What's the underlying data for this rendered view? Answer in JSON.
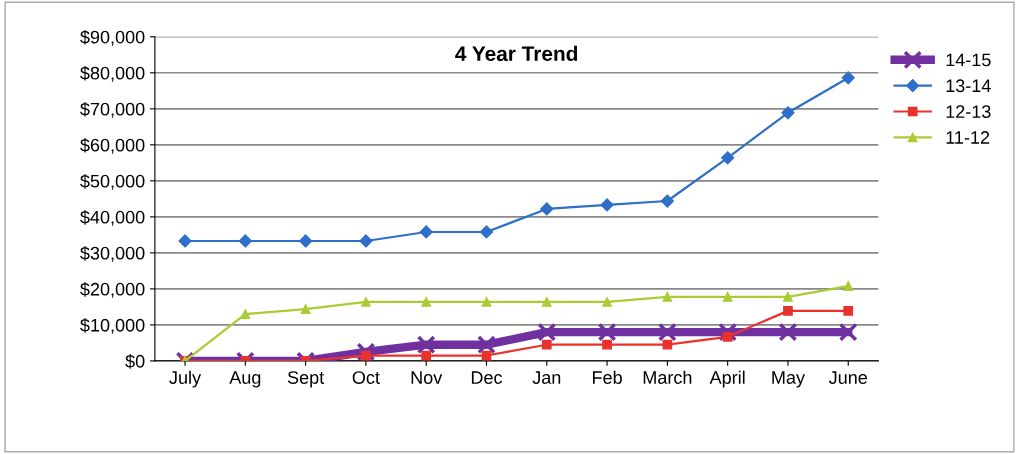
{
  "chart_data": {
    "type": "line",
    "title": "4 Year Trend",
    "categories": [
      "July",
      "Aug",
      "Sept",
      "Oct",
      "Nov",
      "Dec",
      "Jan",
      "Feb",
      "March",
      "April",
      "May",
      "June"
    ],
    "series": [
      {
        "name": "14-15",
        "color": "#7030a0",
        "marker": "cross",
        "values": [
          0,
          0,
          0,
          2500,
          4500,
          4500,
          8000,
          8000,
          8000,
          8000,
          8000,
          8000
        ]
      },
      {
        "name": "13-14",
        "color": "#2e6fc9",
        "marker": "diamond",
        "values": [
          33300,
          33300,
          33300,
          33300,
          35800,
          35800,
          42200,
          43300,
          44400,
          56400,
          68900,
          78600
        ]
      },
      {
        "name": "12-13",
        "color": "#e8322d",
        "marker": "square",
        "values": [
          0,
          0,
          0,
          1500,
          1500,
          1500,
          4500,
          4500,
          4500,
          6700,
          13900,
          13900
        ]
      },
      {
        "name": "11-12",
        "color": "#a9cc34",
        "marker": "triangle",
        "values": [
          0,
          13000,
          14400,
          16400,
          16400,
          16400,
          16400,
          16400,
          17800,
          17800,
          17800,
          20800
        ]
      }
    ],
    "ylim": [
      0,
      90000
    ],
    "yticks": [
      {
        "value": 0,
        "label": "$0"
      },
      {
        "value": 10000,
        "label": "$10,000"
      },
      {
        "value": 20000,
        "label": "$20,000"
      },
      {
        "value": 30000,
        "label": "$30,000"
      },
      {
        "value": 40000,
        "label": "$40,000"
      },
      {
        "value": 50000,
        "label": "$50,000"
      },
      {
        "value": 60000,
        "label": "$60,000"
      },
      {
        "value": 70000,
        "label": "$70,000"
      },
      {
        "value": 80000,
        "label": "$80,000"
      },
      {
        "value": 90000,
        "label": "$90,000"
      }
    ],
    "grid": "y",
    "legend": "right"
  }
}
